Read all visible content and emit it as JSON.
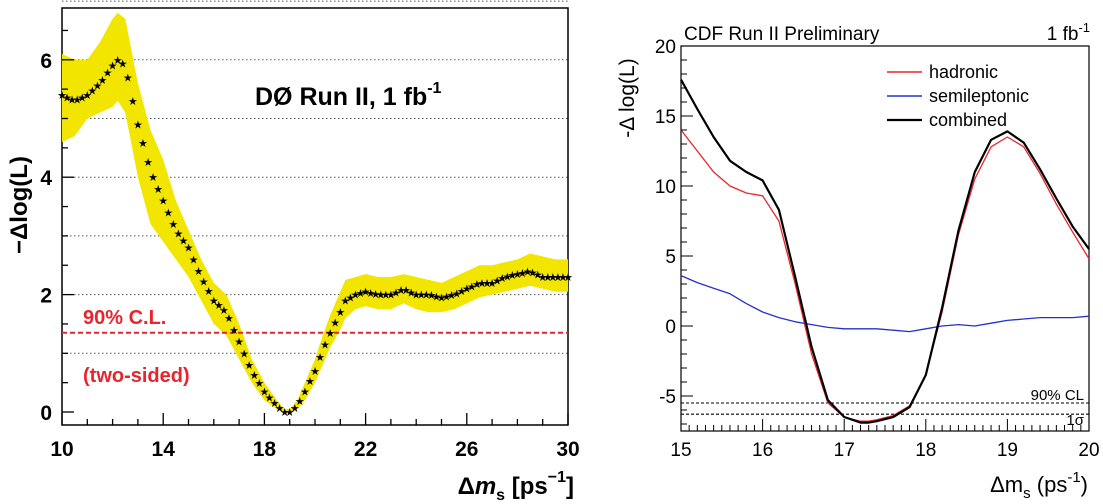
{
  "chart_data": [
    {
      "type": "line",
      "title": "DØ Run II, 1 fb",
      "title_sup": "-1",
      "ylabel": "−Δlog(L)",
      "xlabel_parts": [
        "Δ",
        "m",
        "s",
        " [ps",
        "−1",
        "]"
      ],
      "xlim": [
        10,
        30
      ],
      "ylim": [
        0,
        7
      ],
      "xticks": [
        "10",
        "14",
        "18",
        "22",
        "26",
        "30"
      ],
      "yticks": [
        "0",
        "2",
        "4",
        "6"
      ],
      "grid_y": [
        1,
        2,
        3,
        4,
        5,
        6,
        7
      ],
      "cl_line": {
        "y": 1.35,
        "label1": "90% C.L.",
        "label2": "(two-sided)",
        "color": "#e8252d"
      },
      "band_color": "#f2e600",
      "series": [
        {
          "x": [
            10.0,
            10.5,
            11.0,
            11.5,
            12.0,
            12.2,
            12.5,
            13.0,
            13.5,
            14.0,
            14.5,
            15.0,
            15.5,
            16.0,
            16.5,
            17.0,
            17.5,
            18.0,
            18.5,
            18.8,
            19.0,
            19.3,
            19.6,
            20.0,
            20.3,
            20.6,
            21.0,
            21.2,
            21.6,
            22.0,
            22.5,
            23.0,
            23.5,
            24.0,
            24.5,
            25.0,
            25.5,
            26.0,
            26.5,
            27.0,
            27.5,
            28.0,
            28.5,
            29.0,
            29.5,
            30.0
          ],
          "y": [
            5.4,
            5.3,
            5.4,
            5.6,
            5.9,
            6.0,
            5.9,
            4.9,
            4.1,
            3.6,
            3.1,
            2.8,
            2.3,
            1.9,
            1.7,
            1.2,
            0.7,
            0.35,
            0.1,
            0.0,
            0.0,
            0.1,
            0.35,
            0.7,
            1.05,
            1.35,
            1.7,
            1.9,
            2.0,
            2.05,
            2.0,
            2.0,
            2.1,
            2.0,
            2.0,
            1.95,
            2.0,
            2.1,
            2.2,
            2.2,
            2.3,
            2.35,
            2.4,
            2.3,
            2.3,
            2.3
          ],
          "band_lo": [
            4.6,
            4.7,
            5.0,
            5.1,
            5.2,
            5.3,
            5.1,
            4.0,
            3.2,
            2.9,
            2.6,
            2.3,
            1.9,
            1.5,
            1.3,
            0.9,
            0.5,
            0.2,
            0.05,
            0.0,
            0.0,
            0.05,
            0.2,
            0.5,
            0.8,
            1.1,
            1.4,
            1.6,
            1.75,
            1.8,
            1.75,
            1.75,
            1.85,
            1.75,
            1.7,
            1.7,
            1.75,
            1.85,
            1.95,
            2.0,
            2.05,
            2.1,
            2.15,
            2.1,
            2.05,
            2.05
          ],
          "band_hi": [
            6.1,
            6.0,
            6.0,
            6.3,
            6.7,
            6.8,
            6.7,
            5.6,
            4.8,
            4.3,
            3.6,
            3.1,
            2.6,
            2.2,
            2.0,
            1.5,
            0.9,
            0.5,
            0.2,
            0.05,
            0.05,
            0.2,
            0.5,
            0.9,
            1.3,
            1.65,
            2.05,
            2.25,
            2.3,
            2.35,
            2.3,
            2.3,
            2.35,
            2.3,
            2.25,
            2.2,
            2.3,
            2.4,
            2.5,
            2.5,
            2.55,
            2.6,
            2.7,
            2.65,
            2.6,
            2.6
          ]
        }
      ]
    },
    {
      "type": "line",
      "title": "CDF Run II Preliminary",
      "lumi": "1 fb",
      "lumi_sup": "-1",
      "ylabel": "-Δ log(L)",
      "xlabel_parts": [
        "Δm",
        "s",
        " (ps",
        "-1",
        ")"
      ],
      "xlim": [
        15,
        20
      ],
      "ylim": [
        -7.5,
        20
      ],
      "xticks": [
        "15",
        "16",
        "17",
        "18",
        "19",
        "20"
      ],
      "yticks": [
        "-5",
        "0",
        "5",
        "10",
        "15",
        "20"
      ],
      "hlines": [
        {
          "y": -5.5,
          "label": "90% CL"
        },
        {
          "y": -6.3,
          "label": "1σ"
        }
      ],
      "legend": [
        {
          "name": "hadronic",
          "color": "#e8252d"
        },
        {
          "name": "semileptonic",
          "color": "#2233cc"
        },
        {
          "name": "combined",
          "color": "#000000"
        }
      ],
      "series": [
        {
          "name": "hadronic",
          "color": "#e8252d",
          "x": [
            15.0,
            15.2,
            15.4,
            15.6,
            15.8,
            16.0,
            16.2,
            16.4,
            16.6,
            16.8,
            17.0,
            17.2,
            17.3,
            17.4,
            17.6,
            17.8,
            18.0,
            18.2,
            18.4,
            18.6,
            18.8,
            19.0,
            19.2,
            19.4,
            19.6,
            19.8,
            20.0
          ],
          "y": [
            14.0,
            12.5,
            11.0,
            10.0,
            9.5,
            9.3,
            7.5,
            3.0,
            -2.0,
            -5.5,
            -6.5,
            -6.8,
            -6.8,
            -6.7,
            -6.4,
            -5.7,
            -3.5,
            1.0,
            6.5,
            10.5,
            12.8,
            13.5,
            12.8,
            10.9,
            8.7,
            6.7,
            4.8
          ]
        },
        {
          "name": "semileptonic",
          "color": "#2233cc",
          "x": [
            15.0,
            15.2,
            15.4,
            15.6,
            15.8,
            16.0,
            16.2,
            16.4,
            16.6,
            16.8,
            17.0,
            17.2,
            17.4,
            17.6,
            17.8,
            18.0,
            18.2,
            18.4,
            18.6,
            18.8,
            19.0,
            19.2,
            19.4,
            19.6,
            19.8,
            20.0
          ],
          "y": [
            3.6,
            3.1,
            2.7,
            2.3,
            1.6,
            1.0,
            0.6,
            0.3,
            0.1,
            -0.1,
            -0.2,
            -0.2,
            -0.2,
            -0.3,
            -0.4,
            -0.2,
            0.0,
            0.1,
            0.0,
            0.2,
            0.4,
            0.5,
            0.6,
            0.6,
            0.6,
            0.7
          ]
        },
        {
          "name": "combined",
          "color": "#000000",
          "x": [
            15.0,
            15.2,
            15.4,
            15.6,
            15.8,
            16.0,
            16.2,
            16.4,
            16.6,
            16.8,
            17.0,
            17.2,
            17.3,
            17.4,
            17.6,
            17.8,
            18.0,
            18.2,
            18.4,
            18.6,
            18.8,
            19.0,
            19.2,
            19.4,
            19.6,
            19.8,
            20.0
          ],
          "y": [
            17.6,
            15.5,
            13.5,
            11.8,
            11.0,
            10.4,
            8.3,
            3.5,
            -1.5,
            -5.3,
            -6.5,
            -6.9,
            -6.9,
            -6.8,
            -6.5,
            -5.8,
            -3.5,
            1.3,
            6.8,
            11.0,
            13.3,
            13.9,
            13.1,
            11.2,
            9.1,
            7.1,
            5.5
          ]
        }
      ]
    }
  ]
}
